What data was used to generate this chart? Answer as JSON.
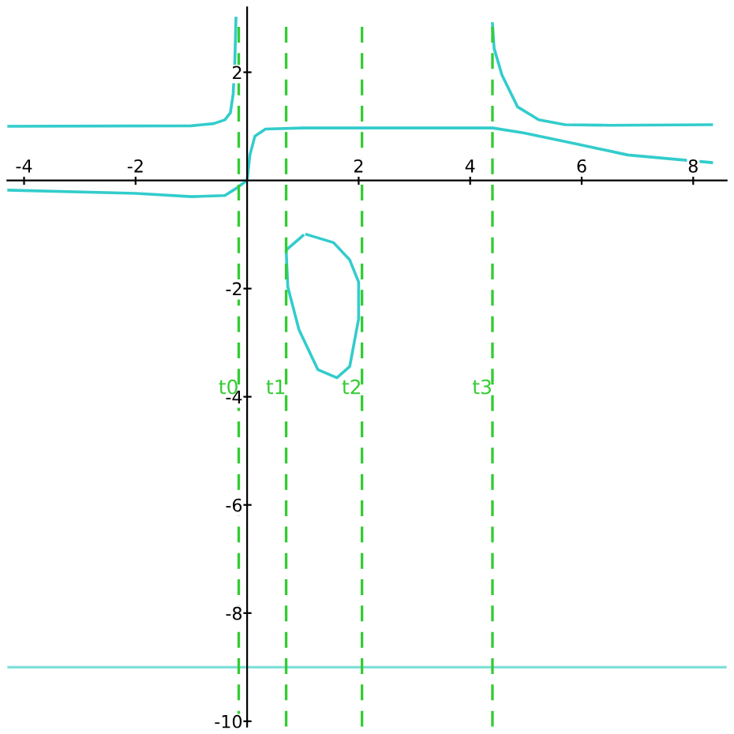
{
  "chart_data": {
    "type": "line",
    "xlim": [
      -4.3,
      8.6
    ],
    "ylim": [
      -10.1,
      3.2
    ],
    "xticks": [
      -4,
      -2,
      2,
      4,
      6,
      8
    ],
    "yticks": [
      -10,
      -8,
      -6,
      -4,
      -2,
      2
    ],
    "grid": false,
    "marker": "none",
    "line_style": "solid",
    "series": [
      {
        "color": "#33cccc",
        "x": [
          -4.3,
          -1,
          -0.6,
          -0.4,
          -0.3,
          -0.25,
          -0.22,
          -0.2
        ],
        "values": [
          1.0,
          1.01,
          1.05,
          1.12,
          1.25,
          1.6,
          2.2,
          3.0
        ]
      },
      {
        "color": "#33cccc",
        "x": [
          -4.3,
          -2,
          -1,
          -0.4,
          -0.2,
          0,
          0.05,
          0.14,
          0.33,
          1,
          2,
          3,
          4.4,
          4.95,
          5.88,
          6.83,
          8.33
        ],
        "values": [
          -0.18,
          -0.24,
          -0.3,
          -0.28,
          -0.15,
          0,
          0.47,
          0.82,
          0.95,
          0.97,
          0.97,
          0.97,
          0.97,
          0.88,
          0.68,
          0.47,
          0.33
        ]
      },
      {
        "color": "#33cccc",
        "x": [
          4.4,
          4.43,
          4.57,
          4.85,
          5.23,
          5.7,
          6.5,
          8.33
        ],
        "values": [
          2.9,
          2.44,
          1.95,
          1.36,
          1.12,
          1.03,
          1.02,
          1.03
        ]
      },
      {
        "color": "#33cccc",
        "x": [
          1.07,
          1.55,
          1.84,
          2.0,
          2.0,
          1.84,
          1.61,
          1.27,
          0.93,
          0.73,
          0.7,
          1.0
        ],
        "values": [
          -1.0,
          -1.15,
          -1.47,
          -1.88,
          -2.56,
          -3.44,
          -3.65,
          -3.5,
          -2.76,
          -1.97,
          -1.29,
          -1.02
        ]
      }
    ],
    "ref_lines": [
      {
        "axis": "y",
        "value": -9,
        "color": "#80e0d8",
        "line_style": "solid"
      },
      {
        "axis": "x",
        "value": -0.15,
        "label": "t0",
        "color": "#33cc33",
        "line_style": "dashed"
      },
      {
        "axis": "x",
        "value": 0.7,
        "label": "t1",
        "color": "#33cc33",
        "line_style": "dashed"
      },
      {
        "axis": "x",
        "value": 2.06,
        "label": "t2",
        "color": "#33cc33",
        "line_style": "dashed"
      },
      {
        "axis": "x",
        "value": 4.4,
        "label": "t3",
        "color": "#33cc33",
        "line_style": "dashed"
      }
    ]
  }
}
